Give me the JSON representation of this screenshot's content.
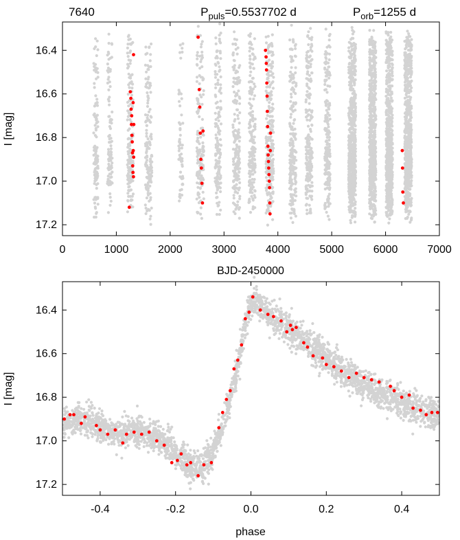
{
  "figure": {
    "star_id": "7640",
    "pulsation_period": "P_puls=0.5537702 d",
    "orbital_period": "P_orb=1255 d"
  },
  "colors": {
    "background_points": "#d3d3d3",
    "highlight_points": "#ff0000",
    "axes": "#000000"
  },
  "chart_data": [
    {
      "type": "scatter",
      "panel": "top",
      "xlabel": "BJD-2450000",
      "ylabel": "I [mag]",
      "xlim": [
        0,
        7000
      ],
      "ylim": [
        17.25,
        16.27
      ],
      "y_inverted": true,
      "xticks": [
        0,
        1000,
        2000,
        3000,
        4000,
        5000,
        6000,
        7000
      ],
      "yticks": [
        16.4,
        16.6,
        16.8,
        17.0,
        17.2
      ],
      "ytick_labels": [
        "16.4",
        "16.6",
        "16.8",
        "17.0",
        "17.2"
      ],
      "pulsation_period_d": 0.5537702,
      "season_centers": [
        {
          "x": 620,
          "w": 80,
          "n": 120
        },
        {
          "x": 880,
          "w": 90,
          "n": 100
        },
        {
          "x": 1260,
          "w": 110,
          "n": 170
        },
        {
          "x": 1600,
          "w": 120,
          "n": 150
        },
        {
          "x": 2200,
          "w": 80,
          "n": 60
        },
        {
          "x": 2560,
          "w": 130,
          "n": 170
        },
        {
          "x": 2890,
          "w": 110,
          "n": 160
        },
        {
          "x": 3230,
          "w": 130,
          "n": 190
        },
        {
          "x": 3520,
          "w": 120,
          "n": 190
        },
        {
          "x": 3850,
          "w": 140,
          "n": 260
        },
        {
          "x": 4280,
          "w": 120,
          "n": 220
        },
        {
          "x": 4580,
          "w": 120,
          "n": 220
        },
        {
          "x": 4920,
          "w": 100,
          "n": 220
        },
        {
          "x": 5380,
          "w": 130,
          "n": 650
        },
        {
          "x": 5760,
          "w": 120,
          "n": 700
        },
        {
          "x": 6070,
          "w": 120,
          "n": 720
        },
        {
          "x": 6420,
          "w": 130,
          "n": 700
        }
      ],
      "series": [
        {
          "role": "highlight",
          "x": [
            1240,
            1260,
            1270,
            1275,
            1280,
            1285,
            1290,
            1295,
            1300,
            1305,
            1310,
            1312,
            1315,
            1318,
            1320,
            1322,
            1325,
            2520,
            2540,
            2550,
            2560,
            2570,
            2580,
            2590,
            2600,
            2610,
            3770,
            3780,
            3785,
            3790,
            3795,
            3800,
            3805,
            3810,
            3815,
            3820,
            3825,
            3830,
            3835,
            3840,
            3845,
            3850,
            3855,
            3860,
            3865,
            6310,
            6315,
            6320,
            6330
          ],
          "y": [
            17.12,
            16.59,
            16.62,
            16.67,
            16.74,
            16.7,
            16.79,
            16.82,
            16.87,
            16.93,
            16.96,
            16.64,
            16.86,
            16.98,
            16.42,
            16.89,
            16.74,
            16.34,
            16.58,
            16.66,
            16.78,
            16.9,
            16.94,
            17.01,
            17.1,
            16.77,
            16.4,
            16.43,
            16.46,
            16.49,
            16.55,
            16.61,
            16.68,
            16.75,
            16.84,
            16.88,
            16.91,
            16.94,
            16.97,
            17.0,
            17.03,
            17.1,
            17.15,
            16.86,
            16.78,
            16.86,
            16.94,
            17.05,
            17.1
          ]
        }
      ]
    },
    {
      "type": "scatter",
      "panel": "bottom",
      "xlabel": "phase",
      "ylabel": "I [mag]",
      "xlim": [
        -0.5,
        0.5
      ],
      "ylim": [
        17.25,
        16.27
      ],
      "y_inverted": true,
      "xticks": [
        -0.4,
        -0.2,
        0.0,
        0.2,
        0.4
      ],
      "xtick_labels": [
        "-0.4",
        "-0.2",
        "0.0",
        "0.2",
        "0.4"
      ],
      "yticks": [
        16.4,
        16.6,
        16.8,
        17.0,
        17.2
      ],
      "ytick_labels": [
        "16.4",
        "16.6",
        "16.8",
        "17.0",
        "17.2"
      ],
      "template_curve": {
        "phase": [
          -0.5,
          -0.45,
          -0.4,
          -0.35,
          -0.3,
          -0.25,
          -0.2,
          -0.17,
          -0.15,
          -0.13,
          -0.1,
          -0.08,
          -0.06,
          -0.04,
          -0.02,
          0.0,
          0.02,
          0.05,
          0.1,
          0.15,
          0.2,
          0.25,
          0.3,
          0.35,
          0.4,
          0.45,
          0.5
        ],
        "mag": [
          16.91,
          16.9,
          16.93,
          16.97,
          16.96,
          16.98,
          17.05,
          17.11,
          17.13,
          17.12,
          17.05,
          16.95,
          16.85,
          16.7,
          16.5,
          16.36,
          16.37,
          16.42,
          16.49,
          16.55,
          16.62,
          16.69,
          16.74,
          16.79,
          16.83,
          16.86,
          16.88
        ],
        "scatter_mag": 0.035,
        "n_points": 3000
      },
      "series": [
        {
          "role": "highlight",
          "x": [
            -0.495,
            -0.48,
            -0.47,
            -0.45,
            -0.44,
            -0.41,
            -0.4,
            -0.38,
            -0.36,
            -0.34,
            -0.33,
            -0.31,
            -0.29,
            -0.27,
            -0.25,
            -0.23,
            -0.21,
            -0.195,
            -0.185,
            -0.17,
            -0.16,
            -0.14,
            -0.125,
            -0.105,
            -0.085,
            -0.075,
            -0.065,
            -0.055,
            -0.045,
            -0.035,
            -0.025,
            -0.015,
            -0.005,
            0.005,
            0.025,
            0.045,
            0.06,
            0.08,
            0.095,
            0.105,
            0.11,
            0.12,
            0.14,
            0.15,
            0.165,
            0.19,
            0.2,
            0.22,
            0.24,
            0.26,
            0.28,
            0.3,
            0.32,
            0.34,
            0.37,
            0.38,
            0.4,
            0.42,
            0.43,
            0.45,
            0.465,
            0.48,
            0.495
          ],
          "y": [
            16.9,
            16.88,
            16.88,
            16.92,
            16.89,
            16.93,
            16.95,
            16.97,
            16.95,
            17.01,
            16.97,
            16.96,
            16.97,
            16.96,
            17.0,
            17.02,
            17.1,
            17.09,
            17.06,
            17.11,
            17.1,
            17.16,
            17.11,
            17.1,
            16.94,
            16.87,
            16.81,
            16.77,
            16.67,
            16.63,
            16.56,
            16.44,
            16.41,
            16.34,
            16.4,
            16.42,
            16.43,
            16.45,
            16.5,
            16.47,
            16.49,
            16.48,
            16.55,
            16.57,
            16.61,
            16.62,
            16.65,
            16.66,
            16.68,
            16.71,
            16.69,
            16.71,
            16.72,
            16.73,
            16.75,
            16.77,
            16.8,
            16.79,
            16.85,
            16.86,
            16.88,
            16.87,
            16.87
          ]
        }
      ]
    }
  ]
}
